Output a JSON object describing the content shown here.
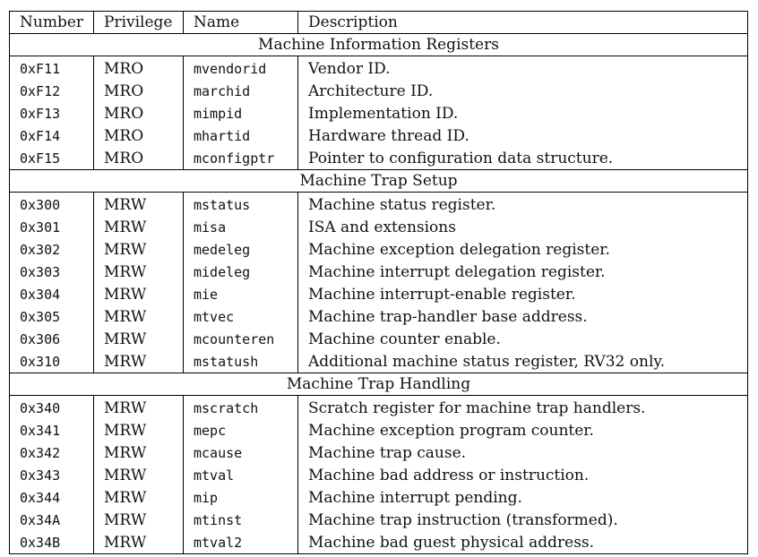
{
  "headers": [
    "Number",
    "Privilege",
    "Name",
    "Description"
  ],
  "sections": [
    {
      "title": "Machine Information Registers",
      "rows": [
        [
          "0xF11",
          "MRO",
          "mvendorid",
          "Vendor ID."
        ],
        [
          "0xF12",
          "MRO",
          "marchid",
          "Architecture ID."
        ],
        [
          "0xF13",
          "MRO",
          "mimpid",
          "Implementation ID."
        ],
        [
          "0xF14",
          "MRO",
          "mhartid",
          "Hardware thread ID."
        ],
        [
          "0xF15",
          "MRO",
          "mconfigptr",
          "Pointer to configuration data structure."
        ]
      ]
    },
    {
      "title": "Machine Trap Setup",
      "rows": [
        [
          "0x300",
          "MRW",
          "mstatus",
          "Machine status register."
        ],
        [
          "0x301",
          "MRW",
          "misa",
          "ISA and extensions"
        ],
        [
          "0x302",
          "MRW",
          "medeleg",
          "Machine exception delegation register."
        ],
        [
          "0x303",
          "MRW",
          "mideleg",
          "Machine interrupt delegation register."
        ],
        [
          "0x304",
          "MRW",
          "mie",
          "Machine interrupt-enable register."
        ],
        [
          "0x305",
          "MRW",
          "mtvec",
          "Machine trap-handler base address."
        ],
        [
          "0x306",
          "MRW",
          "mcounteren",
          "Machine counter enable."
        ],
        [
          "0x310",
          "MRW",
          "mstatush",
          "Additional machine status register, RV32 only."
        ]
      ]
    },
    {
      "title": "Machine Trap Handling",
      "rows": [
        [
          "0x340",
          "MRW",
          "mscratch",
          "Scratch register for machine trap handlers."
        ],
        [
          "0x341",
          "MRW",
          "mepc",
          "Machine exception program counter."
        ],
        [
          "0x342",
          "MRW",
          "mcause",
          "Machine trap cause."
        ],
        [
          "0x343",
          "MRW",
          "mtval",
          "Machine bad address or instruction."
        ],
        [
          "0x344",
          "MRW",
          "mip",
          "Machine interrupt pending."
        ],
        [
          "0x34A",
          "MRW",
          "mtinst",
          "Machine trap instruction (transformed)."
        ],
        [
          "0x34B",
          "MRW",
          "mtval2",
          "Machine bad guest physical address."
        ]
      ]
    }
  ]
}
